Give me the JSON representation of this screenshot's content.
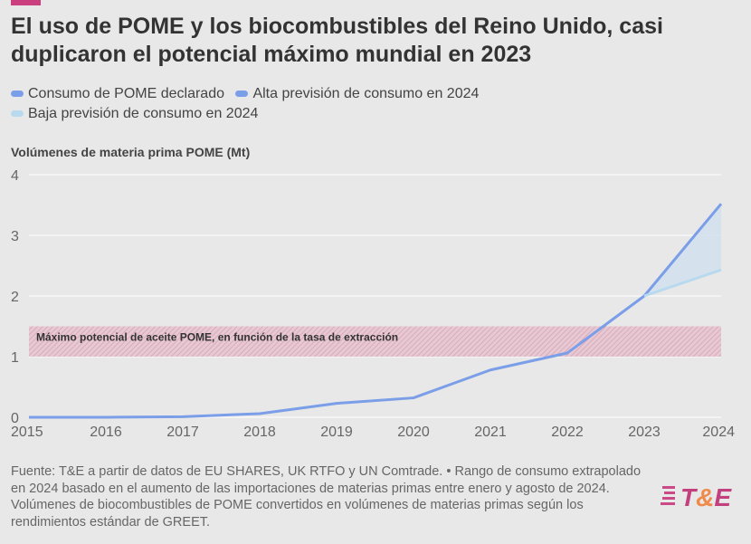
{
  "header": {
    "title": "El uso de POME y los biocombustibles del Reino Unido, casi duplicaron el potencial máximo mundial en 2023"
  },
  "legend": [
    {
      "label": "Consumo de POME declarado",
      "color": "#7b9ee8"
    },
    {
      "label": "Alta previsión de consumo en 2024",
      "color": "#7b9ee8"
    },
    {
      "label": "Baja previsión de consumo en 2024",
      "color": "#b9d9ef"
    }
  ],
  "chart_data": {
    "type": "line",
    "title": "El uso de POME y los biocombustibles del Reino Unido, casi duplicaron el potencial máximo mundial en 2023",
    "ylabel": "Volúmenes de materia prima POME (Mt)",
    "xlabel": "",
    "x": [
      2015,
      2016,
      2017,
      2018,
      2019,
      2020,
      2021,
      2022,
      2023,
      2024
    ],
    "ylim": [
      0,
      4
    ],
    "yticks": [
      0,
      1,
      2,
      3,
      4
    ],
    "series": [
      {
        "name": "Consumo de POME declarado",
        "x": [
          2015,
          2016,
          2017,
          2018,
          2019,
          2020,
          2021,
          2022,
          2023
        ],
        "values": [
          0,
          0,
          0.01,
          0.06,
          0.23,
          0.32,
          0.78,
          1.06,
          2.0
        ]
      },
      {
        "name": "Alta previsión de consumo en 2024",
        "x": [
          2023,
          2024
        ],
        "values": [
          2.0,
          3.52
        ]
      },
      {
        "name": "Baja previsión de consumo en 2024",
        "x": [
          2023,
          2024
        ],
        "values": [
          2.0,
          2.43
        ]
      }
    ],
    "band": {
      "label": "Máximo potencial de aceite POME, en función de la tasa de extracción",
      "range": [
        1.0,
        1.5
      ],
      "color": "#d9a0b4"
    }
  },
  "footer": {
    "text": "Fuente: T&E a partir de datos de EU SHARES, UK RTFO y UN Comtrade. • Rango de consumo extrapolado en 2024 basado en el aumento de las importaciones de materias primas entre enero y agosto de 2024. Volúmenes de biocombustibles de POME convertidos en volúmenes de materias primas según los rendimientos estándar de GREET."
  },
  "logo": {
    "text": "T&E"
  }
}
